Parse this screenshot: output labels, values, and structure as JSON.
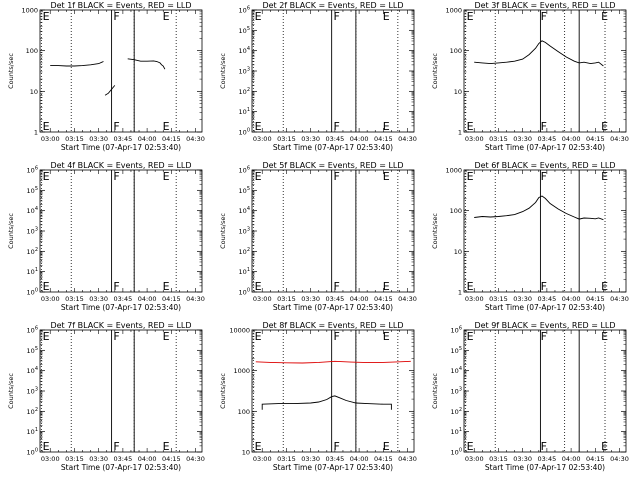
{
  "figure_title": "",
  "chart_data": [
    {
      "type": "line",
      "title": "Det 1f BLACK = Events, RED = LLD",
      "xlabel": "Start Time (07-Apr-17 02:53:40)",
      "ylabel": "Counts/sec",
      "y_scale": "log",
      "ylim": [
        1,
        1000
      ],
      "y_tick_labels": [
        "1",
        "10",
        "100",
        "1000"
      ],
      "y_tick_values": [
        1,
        10,
        100,
        1000
      ],
      "x_tick_labels": [
        "03:00",
        "03:15",
        "03:30",
        "03:45",
        "04:00",
        "04:15",
        "04:30"
      ],
      "xlim": [
        "02:53:40",
        "04:34:00"
      ],
      "dotted_lines": [
        "02:54:30",
        "03:13:00",
        "03:52:00",
        "04:18:00"
      ],
      "solid_lines": [
        "03:38:00",
        "03:52:00"
      ],
      "markers": [
        {
          "label": "E",
          "time": "02:54:40"
        },
        {
          "label": "F",
          "time": "03:38:30"
        },
        {
          "label": "E",
          "time": "04:09:00"
        }
      ],
      "series": [
        {
          "color": "#000000",
          "x": [
            "03:00",
            "03:05",
            "03:10",
            "03:15",
            "03:20",
            "03:25",
            "03:30",
            "03:32",
            "03:33",
            "03:33",
            "03:34",
            "03:36",
            "03:40",
            "03:44",
            "03:48",
            "03:52",
            "03:56",
            "04:00",
            "04:04",
            "04:06",
            "04:08",
            "04:09",
            "04:10",
            "04:11"
          ],
          "y": [
            43,
            43,
            42,
            42,
            43,
            45,
            48,
            52,
            54,
            null,
            8,
            9,
            14,
            null,
            63,
            60,
            55,
            55,
            56,
            54,
            50,
            45,
            42,
            35
          ]
        }
      ]
    },
    {
      "type": "line",
      "title": "Det 2f BLACK = Events, RED = LLD",
      "xlabel": "Start Time (07-Apr-17 02:53:40)",
      "ylabel": "Counts/sec",
      "y_scale": "log",
      "ylim": [
        1,
        1000000
      ],
      "y_tick_labels": [
        "10^0",
        "10^1",
        "10^2",
        "10^3",
        "10^4",
        "10^5",
        "10^6"
      ],
      "y_tick_values": [
        1,
        10,
        100,
        1000,
        10000,
        100000,
        1000000
      ],
      "x_tick_labels": [
        "03:00",
        "03:15",
        "03:30",
        "03:45",
        "04:00",
        "04:15",
        "04:30"
      ],
      "xlim": [
        "02:53:40",
        "04:34:00"
      ],
      "dotted_lines": [
        "02:54:30",
        "03:13:00",
        "03:58:00",
        "04:24:00"
      ],
      "solid_lines": [
        "03:43:00",
        "03:58:00"
      ],
      "markers": [
        {
          "label": "E",
          "time": "02:54:40"
        },
        {
          "label": "F",
          "time": "03:43:30"
        },
        {
          "label": "E",
          "time": "04:14:00"
        }
      ],
      "series": []
    },
    {
      "type": "line",
      "title": "Det 3f BLACK = Events, RED = LLD",
      "xlabel": "Start Time (07-Apr-17 02:53:40)",
      "ylabel": "Counts/sec",
      "y_scale": "log",
      "ylim": [
        1,
        1000
      ],
      "y_tick_labels": [
        "1",
        "10",
        "100",
        "1000"
      ],
      "y_tick_values": [
        1,
        10,
        100,
        1000
      ],
      "x_tick_labels": [
        "03:00",
        "03:15",
        "03:30",
        "03:45",
        "04:00",
        "04:15",
        "04:30"
      ],
      "xlim": [
        "02:53:40",
        "04:34:00"
      ],
      "dotted_lines": [
        "02:54:30",
        "03:13:00",
        "03:56:00",
        "04:21:00"
      ],
      "solid_lines": [
        "03:41:00",
        "04:05:00"
      ],
      "markers": [
        {
          "label": "E",
          "time": "02:54:40"
        },
        {
          "label": "F",
          "time": "03:40:30"
        },
        {
          "label": "E",
          "time": "04:18:00"
        }
      ],
      "series": [
        {
          "color": "#000000",
          "x": [
            "03:00",
            "03:05",
            "03:10",
            "03:15",
            "03:20",
            "03:25",
            "03:30",
            "03:34",
            "03:38",
            "03:40",
            "03:42",
            "03:44",
            "03:47",
            "03:52",
            "03:57",
            "04:02",
            "04:05",
            "04:08",
            "04:12",
            "04:15",
            "04:17",
            "04:20"
          ],
          "y": [
            52,
            50,
            48,
            50,
            52,
            55,
            62,
            80,
            115,
            150,
            175,
            160,
            130,
            95,
            70,
            55,
            50,
            52,
            48,
            50,
            52,
            42
          ]
        }
      ]
    },
    {
      "type": "line",
      "title": "Det 4f BLACK = Events, RED = LLD",
      "xlabel": "Start Time (07-Apr-17 02:53:40)",
      "ylabel": "Counts/sec",
      "y_scale": "log",
      "ylim": [
        1,
        1000000
      ],
      "y_tick_labels": [
        "10^0",
        "10^1",
        "10^2",
        "10^3",
        "10^4",
        "10^5",
        "10^6"
      ],
      "y_tick_values": [
        1,
        10,
        100,
        1000,
        10000,
        100000,
        1000000
      ],
      "x_tick_labels": [
        "03:00",
        "03:15",
        "03:30",
        "03:45",
        "04:00",
        "04:15",
        "04:30"
      ],
      "xlim": [
        "02:53:40",
        "04:34:00"
      ],
      "dotted_lines": [
        "02:54:30",
        "03:13:00",
        "03:52:00",
        "04:18:00"
      ],
      "solid_lines": [
        "03:38:00",
        "03:52:00"
      ],
      "markers": [
        {
          "label": "E",
          "time": "02:54:40"
        },
        {
          "label": "F",
          "time": "03:38:30"
        },
        {
          "label": "E",
          "time": "04:09:00"
        }
      ],
      "series": []
    },
    {
      "type": "line",
      "title": "Det 5f BLACK = Events, RED = LLD",
      "xlabel": "Start Time (07-Apr-17 02:53:40)",
      "ylabel": "Counts/sec",
      "y_scale": "log",
      "ylim": [
        1,
        1000000
      ],
      "y_tick_labels": [
        "10^0",
        "10^1",
        "10^2",
        "10^3",
        "10^4",
        "10^5",
        "10^6"
      ],
      "y_tick_values": [
        1,
        10,
        100,
        1000,
        10000,
        100000,
        1000000
      ],
      "x_tick_labels": [
        "03:00",
        "03:15",
        "03:30",
        "03:45",
        "04:00",
        "04:15",
        "04:30"
      ],
      "xlim": [
        "02:53:40",
        "04:34:00"
      ],
      "dotted_lines": [
        "02:54:30",
        "03:13:00",
        "03:58:00",
        "04:24:00"
      ],
      "solid_lines": [
        "03:43:00",
        "03:58:00"
      ],
      "markers": [
        {
          "label": "E",
          "time": "02:54:40"
        },
        {
          "label": "F",
          "time": "03:43:30"
        },
        {
          "label": "E",
          "time": "04:14:00"
        }
      ],
      "series": []
    },
    {
      "type": "line",
      "title": "Det 6f BLACK = Events, RED = LLD",
      "xlabel": "Start Time (07-Apr-17 02:53:40)",
      "ylabel": "Counts/sec",
      "y_scale": "log",
      "ylim": [
        1,
        1000
      ],
      "y_tick_labels": [
        "1",
        "10",
        "100",
        "1000"
      ],
      "y_tick_values": [
        1,
        10,
        100,
        1000
      ],
      "x_tick_labels": [
        "03:00",
        "03:15",
        "03:30",
        "03:45",
        "04:00",
        "04:15",
        "04:30"
      ],
      "xlim": [
        "02:53:40",
        "04:34:00"
      ],
      "dotted_lines": [
        "02:54:30",
        "03:13:00",
        "03:56:00",
        "04:21:00"
      ],
      "solid_lines": [
        "03:41:00",
        "04:05:00"
      ],
      "markers": [
        {
          "label": "E",
          "time": "02:54:40"
        },
        {
          "label": "F",
          "time": "03:40:30"
        },
        {
          "label": "E",
          "time": "04:18:00"
        }
      ],
      "series": [
        {
          "color": "#000000",
          "x": [
            "03:00",
            "03:05",
            "03:10",
            "03:15",
            "03:20",
            "03:25",
            "03:30",
            "03:34",
            "03:38",
            "03:40",
            "03:42",
            "03:44",
            "03:47",
            "03:52",
            "03:57",
            "04:02",
            "04:05",
            "04:08",
            "04:12",
            "04:15",
            "04:17",
            "04:20"
          ],
          "y": [
            68,
            72,
            70,
            72,
            75,
            80,
            95,
            115,
            160,
            210,
            230,
            200,
            150,
            110,
            85,
            70,
            62,
            66,
            65,
            63,
            66,
            60
          ]
        }
      ]
    },
    {
      "type": "line",
      "title": "Det 7f BLACK = Events, RED = LLD",
      "xlabel": "Start Time (07-Apr-17 02:53:40)",
      "ylabel": "Counts/sec",
      "y_scale": "log",
      "ylim": [
        1,
        1000000
      ],
      "y_tick_labels": [
        "10^0",
        "10^1",
        "10^2",
        "10^3",
        "10^4",
        "10^5",
        "10^6"
      ],
      "y_tick_values": [
        1,
        10,
        100,
        1000,
        10000,
        100000,
        1000000
      ],
      "x_tick_labels": [
        "03:00",
        "03:15",
        "03:30",
        "03:45",
        "04:00",
        "04:15",
        "04:30"
      ],
      "xlim": [
        "02:53:40",
        "04:34:00"
      ],
      "dotted_lines": [
        "02:54:30",
        "03:13:00",
        "03:52:00",
        "04:18:00"
      ],
      "solid_lines": [
        "03:38:00",
        "03:52:00"
      ],
      "markers": [
        {
          "label": "E",
          "time": "02:54:40"
        },
        {
          "label": "F",
          "time": "03:38:30"
        },
        {
          "label": "E",
          "time": "04:09:00"
        }
      ],
      "series": []
    },
    {
      "type": "line",
      "title": "Det 8f BLACK = Events, RED = LLD",
      "xlabel": "Start Time (07-Apr-17 02:53:40)",
      "ylabel": "Counts/sec",
      "y_scale": "log",
      "ylim": [
        10,
        10000
      ],
      "y_tick_labels": [
        "10",
        "100",
        "1000",
        "10000"
      ],
      "y_tick_values": [
        10,
        100,
        1000,
        10000
      ],
      "x_tick_labels": [
        "03:00",
        "03:15",
        "03:30",
        "03:45",
        "04:00",
        "04:15",
        "04:30"
      ],
      "xlim": [
        "02:53:40",
        "04:34:00"
      ],
      "dotted_lines": [
        "02:54:30",
        "03:13:00",
        "03:58:00",
        "04:24:00"
      ],
      "solid_lines": [
        "03:43:00",
        "03:58:00"
      ],
      "markers": [
        {
          "label": "E",
          "time": "02:54:40"
        },
        {
          "label": "F",
          "time": "03:43:30"
        },
        {
          "label": "E",
          "time": "04:14:00"
        }
      ],
      "series": [
        {
          "color": "#000000",
          "x": [
            "03:00",
            "03:00",
            "03:10",
            "03:20",
            "03:30",
            "03:35",
            "03:40",
            "03:43",
            "03:45",
            "03:48",
            "03:52",
            "03:58",
            "04:05",
            "04:15",
            "04:20",
            "04:20"
          ],
          "y": [
            110,
            150,
            155,
            155,
            160,
            170,
            195,
            230,
            240,
            215,
            185,
            160,
            155,
            150,
            150,
            110
          ]
        },
        {
          "color": "#dd0000",
          "x": [
            "02:56",
            "03:05",
            "03:15",
            "03:25",
            "03:35",
            "03:45",
            "03:55",
            "04:05",
            "04:15",
            "04:25",
            "04:32"
          ],
          "y": [
            1650,
            1600,
            1560,
            1540,
            1600,
            1700,
            1620,
            1580,
            1600,
            1650,
            1700
          ]
        }
      ]
    },
    {
      "type": "line",
      "title": "Det 9f BLACK = Events, RED = LLD",
      "xlabel": "Start Time (07-Apr-17 02:53:40)",
      "ylabel": "Counts/sec",
      "y_scale": "log",
      "ylim": [
        1,
        1000000
      ],
      "y_tick_labels": [
        "10^0",
        "10^1",
        "10^2",
        "10^3",
        "10^4",
        "10^5",
        "10^6"
      ],
      "y_tick_values": [
        1,
        10,
        100,
        1000,
        10000,
        100000,
        1000000
      ],
      "x_tick_labels": [
        "03:00",
        "03:15",
        "03:30",
        "03:45",
        "04:00",
        "04:15",
        "04:30"
      ],
      "xlim": [
        "02:53:40",
        "04:34:00"
      ],
      "dotted_lines": [
        "02:54:30",
        "03:13:00",
        "03:56:00",
        "04:21:00"
      ],
      "solid_lines": [
        "03:41:00",
        "04:05:00"
      ],
      "markers": [
        {
          "label": "E",
          "time": "02:54:40"
        },
        {
          "label": "F",
          "time": "03:40:30"
        },
        {
          "label": "E",
          "time": "04:18:00"
        }
      ],
      "series": []
    }
  ]
}
